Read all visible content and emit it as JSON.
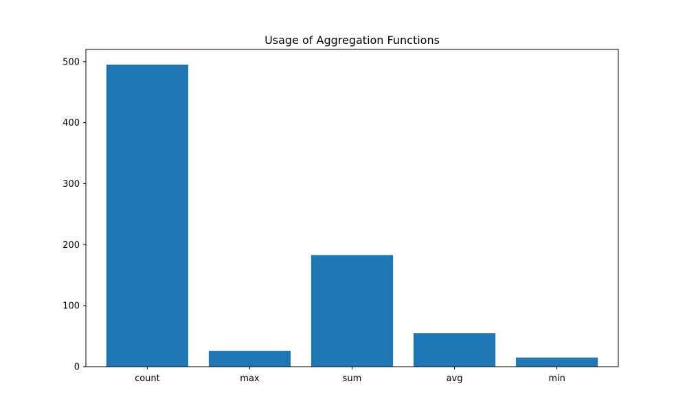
{
  "chart_data": {
    "type": "bar",
    "title": "Usage of Aggregation Functions",
    "xlabel": "",
    "ylabel": "",
    "categories": [
      "count",
      "max",
      "sum",
      "avg",
      "min"
    ],
    "values": [
      495,
      26,
      183,
      55,
      15
    ],
    "ylim": [
      0,
      520
    ],
    "yticks": [
      0,
      100,
      200,
      300,
      400,
      500
    ],
    "grid": false,
    "legend": "none",
    "colors": {
      "bar": "#1f77b4",
      "axis": "#000000",
      "background": "#ffffff"
    }
  }
}
